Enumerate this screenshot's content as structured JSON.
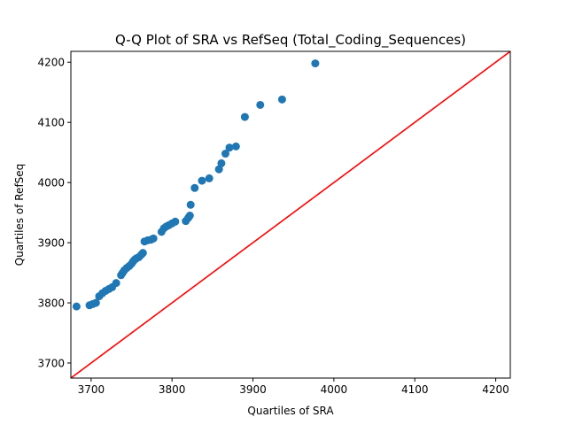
{
  "chart_data": {
    "type": "scatter",
    "title": "Q-Q Plot of SRA vs RefSeq (Total_Coding_Sequences)",
    "xlabel": "Quartiles of SRA",
    "ylabel": "Quartiles of RefSeq",
    "xlim": [
      3675,
      4218
    ],
    "ylim": [
      3675,
      4218
    ],
    "xticks": [
      3700,
      3800,
      3900,
      4000,
      4100,
      4200
    ],
    "yticks": [
      3700,
      3800,
      3900,
      4000,
      4100,
      4200
    ],
    "grid": false,
    "legend": "none",
    "marker_color": "#1f77b4",
    "reference_line": {
      "from": [
        3675,
        3675
      ],
      "to": [
        4218,
        4218
      ],
      "color": "#ff0000"
    },
    "points": [
      [
        3682,
        3794
      ],
      [
        3698,
        3796
      ],
      [
        3702,
        3798
      ],
      [
        3706,
        3800
      ],
      [
        3710,
        3811
      ],
      [
        3714,
        3816
      ],
      [
        3718,
        3820
      ],
      [
        3722,
        3823
      ],
      [
        3726,
        3826
      ],
      [
        3731,
        3833
      ],
      [
        3737,
        3846
      ],
      [
        3739,
        3850
      ],
      [
        3741,
        3854
      ],
      [
        3744,
        3858
      ],
      [
        3747,
        3861
      ],
      [
        3750,
        3865
      ],
      [
        3752,
        3869
      ],
      [
        3754,
        3872
      ],
      [
        3756,
        3874
      ],
      [
        3759,
        3876
      ],
      [
        3762,
        3880
      ],
      [
        3764,
        3883
      ],
      [
        3766,
        3902
      ],
      [
        3770,
        3904
      ],
      [
        3774,
        3905
      ],
      [
        3777,
        3907
      ],
      [
        3787,
        3918
      ],
      [
        3790,
        3924
      ],
      [
        3793,
        3927
      ],
      [
        3796,
        3929
      ],
      [
        3800,
        3932
      ],
      [
        3804,
        3935
      ],
      [
        3817,
        3936
      ],
      [
        3820,
        3941
      ],
      [
        3822,
        3945
      ],
      [
        3823,
        3963
      ],
      [
        3828,
        3991
      ],
      [
        3837,
        4003
      ],
      [
        3846,
        4007
      ],
      [
        3858,
        4022
      ],
      [
        3861,
        4032
      ],
      [
        3866,
        4048
      ],
      [
        3871,
        4058
      ],
      [
        3879,
        4060
      ],
      [
        3890,
        4109
      ],
      [
        3909,
        4129
      ],
      [
        3936,
        4138
      ],
      [
        3977,
        4198
      ]
    ]
  }
}
